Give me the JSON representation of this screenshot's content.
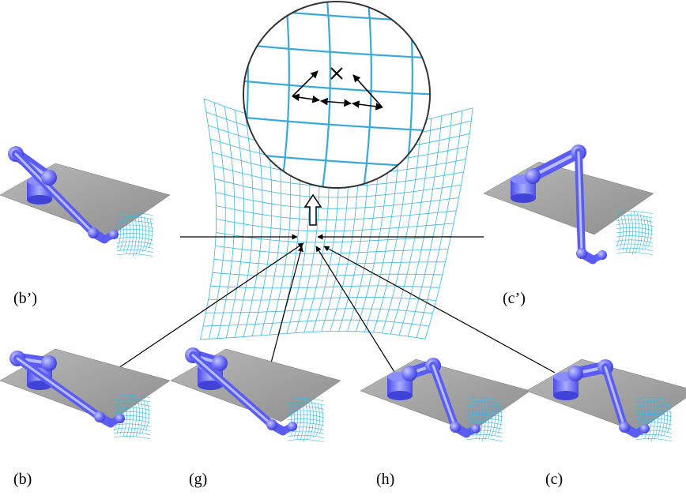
{
  "labels": {
    "b_prime": "(b’)",
    "c_prime": "(c’)",
    "b": "(b)",
    "g": "(g)",
    "h": "(h)",
    "c": "(c)"
  },
  "colors": {
    "robot": "#5a5cf2",
    "robot_highlight": "#b9bcff",
    "floor": "#a8a8a8",
    "mesh": "#3cb4dc",
    "line": "#000000"
  },
  "icons": {
    "zoom_arrow": "hollow-up-arrow",
    "target": "cross-mark"
  }
}
